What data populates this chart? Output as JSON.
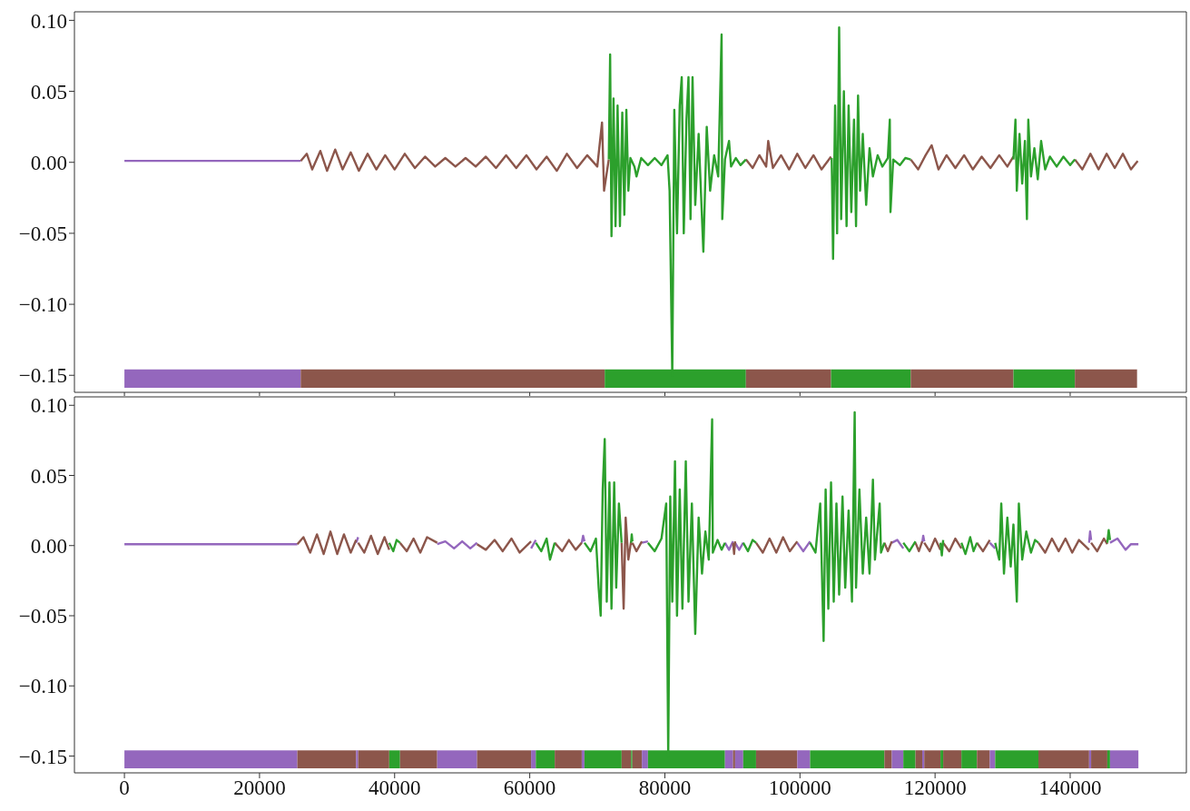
{
  "chart_data": [
    {
      "type": "line",
      "xlim": [
        -7400,
        157200
      ],
      "ylim": [
        -0.162,
        0.106
      ],
      "xticks": [
        0,
        20000,
        40000,
        60000,
        80000,
        100000,
        120000,
        140000
      ],
      "yticks": [
        {
          "value": 0.1,
          "label": "0.10"
        },
        {
          "value": 0.05,
          "label": "0.05"
        },
        {
          "value": 0,
          "label": "0.00"
        },
        {
          "value": -0.05,
          "label": "−0.05"
        },
        {
          "value": -0.1,
          "label": "−0.10"
        },
        {
          "value": -0.15,
          "label": "−0.15"
        }
      ],
      "tick_labels": "y",
      "series": [
        {
          "color": "#9467bd",
          "x": [
            0,
            5000,
            10000,
            15000,
            20000,
            26100
          ],
          "values": [
            0.001,
            0.001,
            0.001,
            0.001,
            0.001,
            0.001
          ]
        },
        {
          "color": "#8c564b",
          "x": [
            26100,
            27000,
            27800,
            29000,
            30000,
            31200,
            32300,
            33500,
            34700,
            36000,
            37300,
            38600,
            40000,
            41500,
            43000,
            44500,
            46000,
            47500,
            49000,
            50500,
            52000,
            53500,
            55000,
            56500,
            58000,
            59500,
            61000,
            62500,
            64000,
            65500,
            67000,
            68500,
            70000,
            70700,
            71000,
            71700,
            80000,
            92000,
            93000,
            94000,
            95000,
            95300,
            96000,
            97200,
            98400,
            99600,
            100800,
            102000,
            103200,
            104600,
            110000,
            116400,
            117500,
            118600,
            119500,
            120500,
            121700,
            123000,
            124300,
            125600,
            126900,
            128200,
            129500,
            130700,
            131600,
            136000,
            140700,
            141800,
            143000,
            144200,
            145400,
            146600,
            147800,
            149000,
            150000
          ],
          "values": [
            0.001,
            0.006,
            -0.005,
            0.008,
            -0.006,
            0.009,
            -0.005,
            0.007,
            -0.006,
            0.006,
            -0.005,
            0.005,
            -0.005,
            0.006,
            -0.004,
            0.004,
            -0.003,
            0.003,
            -0.003,
            0.003,
            -0.003,
            0.004,
            -0.004,
            0.005,
            -0.004,
            0.005,
            -0.005,
            0.004,
            -0.006,
            0.006,
            -0.004,
            0.005,
            -0.003,
            0.028,
            -0.02,
            0.002,
            null,
            0.002,
            -0.004,
            0.005,
            -0.003,
            0.015,
            -0.004,
            0.005,
            -0.005,
            0.006,
            -0.004,
            0.005,
            -0.005,
            0.004,
            null,
            0.002,
            -0.005,
            0.005,
            0.012,
            -0.005,
            0.005,
            -0.004,
            0.005,
            -0.005,
            0.004,
            -0.004,
            0.005,
            -0.003,
            0.004,
            null,
            0.002,
            -0.005,
            0.006,
            -0.005,
            0.006,
            -0.004,
            0.006,
            -0.005,
            0.001
          ]
        },
        {
          "color": "#2ca02c",
          "x": [
            71700,
            71900,
            72100,
            72400,
            72700,
            73000,
            73350,
            73700,
            74000,
            74300,
            74600,
            74900,
            75500,
            75800,
            76500,
            77500,
            78500,
            79500,
            80400,
            80700,
            81100,
            81400,
            81800,
            82200,
            82500,
            82800,
            83200,
            83500,
            83800,
            84100,
            84500,
            85000,
            85700,
            86200,
            86700,
            87300,
            87900,
            88400,
            88500,
            88900,
            89500,
            89800,
            90500,
            91200,
            92000,
            98000,
            104700,
            104900,
            105200,
            105500,
            105800,
            106100,
            106500,
            106900,
            107200,
            107600,
            108000,
            108300,
            108600,
            108900,
            109300,
            109800,
            110300,
            110800,
            111500,
            112200,
            113000,
            113300,
            113400,
            113800,
            114800,
            115600,
            116400,
            125000,
            131600,
            131900,
            132100,
            132500,
            132900,
            133300,
            133600,
            133800,
            134200,
            134700,
            135200,
            135700,
            136300,
            137000,
            138000,
            139000,
            140000,
            140700
          ],
          "values": [
            0.002,
            0.076,
            -0.052,
            0.045,
            -0.045,
            0.04,
            -0.045,
            0.035,
            -0.037,
            0.037,
            -0.02,
            0.003,
            -0.003,
            -0.01,
            0.003,
            -0.002,
            0.003,
            -0.002,
            0.005,
            -0.02,
            -0.15,
            0.037,
            -0.05,
            0.04,
            0.06,
            -0.05,
            0.03,
            0.06,
            -0.04,
            0.06,
            -0.03,
            0.02,
            -0.063,
            0.025,
            -0.02,
            0.005,
            -0.01,
            0.09,
            -0.04,
            0.002,
            0.015,
            -0.003,
            0.003,
            -0.002,
            0.002,
            null,
            0.003,
            -0.068,
            0.04,
            -0.05,
            0.095,
            -0.04,
            0.05,
            -0.045,
            0.04,
            -0.035,
            0.03,
            -0.045,
            0.047,
            -0.02,
            0.02,
            -0.03,
            0.01,
            -0.01,
            0.005,
            -0.003,
            0.003,
            0.03,
            -0.035,
            0.002,
            -0.002,
            0.003,
            0.002,
            null,
            0.002,
            0.03,
            -0.02,
            0.02,
            -0.015,
            0.015,
            -0.04,
            0.03,
            -0.01,
            0.01,
            -0.012,
            0.015,
            -0.005,
            0.004,
            -0.003,
            0.004,
            -0.002,
            0.002
          ]
        }
      ],
      "bands": [
        {
          "axis": "x",
          "from": 0,
          "to": 26100,
          "color": "#9467bd"
        },
        {
          "axis": "x",
          "from": 26100,
          "to": 71100,
          "color": "#8c564b"
        },
        {
          "axis": "x",
          "from": 71100,
          "to": 92000,
          "color": "#2ca02c"
        },
        {
          "axis": "x",
          "from": 92000,
          "to": 104600,
          "color": "#8c564b"
        },
        {
          "axis": "x",
          "from": 104600,
          "to": 116400,
          "color": "#2ca02c"
        },
        {
          "axis": "x",
          "from": 116400,
          "to": 131600,
          "color": "#8c564b"
        },
        {
          "axis": "x",
          "from": 131600,
          "to": 140700,
          "color": "#2ca02c"
        },
        {
          "axis": "x",
          "from": 140700,
          "to": 149900,
          "color": "#8c564b"
        }
      ]
    },
    {
      "type": "line",
      "xlim": [
        -7400,
        157200
      ],
      "ylim": [
        -0.162,
        0.106
      ],
      "xticks": [
        0,
        20000,
        40000,
        60000,
        80000,
        100000,
        120000,
        140000
      ],
      "yticks": [
        {
          "value": 0.1,
          "label": "0.10"
        },
        {
          "value": 0.05,
          "label": "0.05"
        },
        {
          "value": 0,
          "label": "0.00"
        },
        {
          "value": -0.05,
          "label": "−0.05"
        },
        {
          "value": -0.1,
          "label": "−0.10"
        },
        {
          "value": -0.15,
          "label": "−0.15"
        }
      ],
      "series": [
        {
          "color": "#9467bd",
          "x": [
            0,
            12000,
            25600,
            30000,
            34300,
            34600,
            40000,
            46300,
            47500,
            48800,
            50000,
            51200,
            52200,
            56000,
            60200,
            60900,
            64000,
            67700,
            67900,
            68100,
            72000,
            76600,
            77500,
            83000,
            88900,
            89500,
            90100,
            90250,
            90400,
            91000,
            91600,
            95000,
            99600,
            100500,
            101500,
            107000,
            113600,
            114400,
            115300,
            116500,
            118100,
            118250,
            118400,
            123000,
            128100,
            128900,
            135000,
            142800,
            142950,
            143100,
            144500,
            145900,
            147000,
            148200,
            149000,
            150100
          ],
          "values": [
            0.001,
            0.001,
            0.001,
            null,
            0.002,
            0.006,
            null,
            0.001,
            0.003,
            -0.002,
            0.003,
            -0.002,
            0.002,
            null,
            -0.002,
            0.004,
            null,
            0.002,
            0.007,
            0.003,
            null,
            0.002,
            0.003,
            null,
            0.002,
            -0.003,
            0.003,
            null,
            0.002,
            -0.003,
            0.002,
            null,
            0.002,
            -0.004,
            0.003,
            null,
            0.002,
            0.004,
            -0.002,
            null,
            0.002,
            0.007,
            0.003,
            null,
            0.002,
            -0.002,
            null,
            0.002,
            0.01,
            0.004,
            null,
            0.002,
            0.005,
            -0.003,
            0.001,
            0.001
          ]
        },
        {
          "color": "#8c564b",
          "x": [
            25600,
            26500,
            27500,
            28500,
            29500,
            30500,
            31500,
            32500,
            33500,
            34300,
            34450,
            34600,
            35500,
            36500,
            37500,
            38500,
            39200,
            40000,
            40800,
            41800,
            42800,
            43800,
            44800,
            46300,
            49000,
            52200,
            53500,
            54800,
            56000,
            57300,
            58500,
            60200,
            62000,
            63700,
            64800,
            65800,
            66800,
            67700,
            70000,
            73600,
            73900,
            74200,
            74600,
            75000,
            75100,
            75200,
            75800,
            76600,
            83000,
            90100,
            90250,
            90400,
            92000,
            93500,
            94500,
            95500,
            96500,
            97500,
            98500,
            99600,
            106000,
            112500,
            113000,
            113600,
            115000,
            117100,
            117600,
            118100,
            118250,
            118400,
            119200,
            120000,
            120800,
            121000,
            121200,
            122100,
            123000,
            123900,
            125000,
            126200,
            127100,
            128100,
            132000,
            135300,
            136300,
            137300,
            138300,
            139300,
            140300,
            141300,
            142800,
            143000,
            143100,
            144000,
            145000,
            145500
          ],
          "values": [
            0.001,
            0.006,
            -0.005,
            0.008,
            -0.006,
            0.01,
            -0.006,
            0.008,
            -0.005,
            0.004,
            null,
            0.002,
            -0.005,
            0.007,
            -0.006,
            0.006,
            -0.003,
            null,
            0.002,
            -0.004,
            0.005,
            -0.005,
            0.006,
            0.002,
            null,
            0.001,
            -0.003,
            0.004,
            -0.004,
            0.005,
            -0.005,
            0.003,
            null,
            0.002,
            -0.004,
            0.004,
            -0.003,
            0.002,
            null,
            0.002,
            -0.045,
            0.02,
            -0.01,
            0.003,
            null,
            0.002,
            -0.004,
            0.003,
            null,
            0.002,
            -0.006,
            0.003,
            null,
            0.002,
            -0.005,
            0.005,
            -0.005,
            0.006,
            -0.004,
            0.003,
            null,
            0.002,
            -0.004,
            0.003,
            null,
            0.002,
            -0.004,
            0.003,
            null,
            0.002,
            -0.004,
            0.005,
            -0.003,
            null,
            0.002,
            -0.004,
            0.005,
            -0.002,
            null,
            0.002,
            -0.004,
            0.004,
            null,
            0.002,
            -0.005,
            0.005,
            -0.004,
            0.005,
            -0.005,
            0.004,
            -0.003,
            null,
            0.002,
            -0.004,
            0.005,
            0.001
          ]
        },
        {
          "color": "#2ca02c",
          "x": [
            39200,
            39800,
            40300,
            40800,
            50000,
            60900,
            61700,
            62500,
            63000,
            63700,
            66000,
            68100,
            69000,
            69800,
            70200,
            70500,
            70800,
            71100,
            71400,
            71800,
            72100,
            72500,
            72800,
            73200,
            73600,
            74300,
            75000,
            75100,
            75200,
            76000,
            77500,
            78500,
            79500,
            80200,
            80500,
            80800,
            81100,
            81500,
            81800,
            82200,
            82600,
            83100,
            83500,
            84000,
            84500,
            85000,
            85500,
            86000,
            86500,
            87000,
            87100,
            87800,
            88400,
            88900,
            90250,
            91600,
            92300,
            93000,
            93500,
            97000,
            101500,
            102300,
            103000,
            103500,
            103800,
            104200,
            104600,
            105000,
            105400,
            105800,
            106300,
            106700,
            107200,
            107700,
            108100,
            108300,
            108800,
            109300,
            109800,
            110300,
            110800,
            111100,
            111800,
            112000,
            112500,
            114000,
            115300,
            116200,
            117100,
            119000,
            120800,
            121000,
            121200,
            122000,
            123900,
            124500,
            125200,
            125700,
            126200,
            127000,
            128900,
            129500,
            129800,
            130200,
            130700,
            131200,
            131600,
            132100,
            132400,
            132900,
            133500,
            134200,
            134800,
            135300,
            140000,
            145500,
            145700,
            145900
          ],
          "values": [
            0.002,
            -0.004,
            0.004,
            0.002,
            null,
            0.002,
            -0.004,
            0.005,
            -0.01,
            0.002,
            null,
            0.002,
            -0.004,
            0.005,
            -0.03,
            -0.05,
            0.04,
            0.076,
            -0.04,
            0.045,
            -0.045,
            0.045,
            -0.03,
            0.03,
            0.002,
            null,
            0.002,
            0.008,
            0.003,
            null,
            0.002,
            -0.004,
            0.005,
            0.03,
            -0.15,
            0.035,
            -0.04,
            0.06,
            -0.05,
            0.04,
            -0.045,
            0.06,
            -0.04,
            0.03,
            -0.063,
            0.02,
            -0.02,
            0.01,
            -0.01,
            0.09,
            -0.005,
            0.004,
            -0.003,
            0.002,
            null,
            0.002,
            -0.004,
            0.004,
            0.002,
            null,
            0.002,
            -0.005,
            0.03,
            -0.068,
            0.04,
            -0.045,
            0.045,
            -0.04,
            0.03,
            -0.035,
            0.035,
            -0.03,
            0.025,
            -0.04,
            0.095,
            -0.03,
            0.04,
            -0.02,
            0.02,
            -0.02,
            0.047,
            -0.01,
            0.03,
            -0.005,
            0.002,
            null,
            0.002,
            -0.004,
            0.003,
            null,
            0.002,
            -0.007,
            0.004,
            null,
            0.002,
            -0.006,
            0.006,
            -0.004,
            0.002,
            null,
            0.002,
            -0.01,
            0.03,
            -0.02,
            0.02,
            -0.015,
            0.015,
            -0.04,
            0.03,
            -0.01,
            0.01,
            -0.005,
            0.004,
            0.002,
            null,
            0.002,
            0.011,
            0.004
          ]
        }
      ],
      "bands": [
        {
          "axis": "x",
          "from": 0,
          "to": 25600,
          "color": "#9467bd"
        },
        {
          "axis": "x",
          "from": 25600,
          "to": 34300,
          "color": "#8c564b"
        },
        {
          "axis": "x",
          "from": 34300,
          "to": 34600,
          "color": "#9467bd"
        },
        {
          "axis": "x",
          "from": 34600,
          "to": 39200,
          "color": "#8c564b"
        },
        {
          "axis": "x",
          "from": 39200,
          "to": 40800,
          "color": "#2ca02c"
        },
        {
          "axis": "x",
          "from": 40800,
          "to": 46300,
          "color": "#8c564b"
        },
        {
          "axis": "x",
          "from": 46300,
          "to": 52200,
          "color": "#9467bd"
        },
        {
          "axis": "x",
          "from": 52200,
          "to": 60200,
          "color": "#8c564b"
        },
        {
          "axis": "x",
          "from": 60200,
          "to": 60900,
          "color": "#9467bd"
        },
        {
          "axis": "x",
          "from": 60900,
          "to": 63700,
          "color": "#2ca02c"
        },
        {
          "axis": "x",
          "from": 63700,
          "to": 67700,
          "color": "#8c564b"
        },
        {
          "axis": "x",
          "from": 67700,
          "to": 68100,
          "color": "#9467bd"
        },
        {
          "axis": "x",
          "from": 68100,
          "to": 73600,
          "color": "#2ca02c"
        },
        {
          "axis": "x",
          "from": 73600,
          "to": 75000,
          "color": "#8c564b"
        },
        {
          "axis": "x",
          "from": 75000,
          "to": 75200,
          "color": "#2ca02c"
        },
        {
          "axis": "x",
          "from": 75200,
          "to": 76600,
          "color": "#8c564b"
        },
        {
          "axis": "x",
          "from": 76600,
          "to": 77500,
          "color": "#9467bd"
        },
        {
          "axis": "x",
          "from": 77500,
          "to": 88900,
          "color": "#2ca02c"
        },
        {
          "axis": "x",
          "from": 88900,
          "to": 90100,
          "color": "#9467bd"
        },
        {
          "axis": "x",
          "from": 90100,
          "to": 90400,
          "color": "#8c564b"
        },
        {
          "axis": "x",
          "from": 90400,
          "to": 91600,
          "color": "#9467bd"
        },
        {
          "axis": "x",
          "from": 91600,
          "to": 93500,
          "color": "#2ca02c"
        },
        {
          "axis": "x",
          "from": 93500,
          "to": 99600,
          "color": "#8c564b"
        },
        {
          "axis": "x",
          "from": 99600,
          "to": 101500,
          "color": "#9467bd"
        },
        {
          "axis": "x",
          "from": 101500,
          "to": 112500,
          "color": "#2ca02c"
        },
        {
          "axis": "x",
          "from": 112500,
          "to": 113600,
          "color": "#8c564b"
        },
        {
          "axis": "x",
          "from": 113600,
          "to": 115300,
          "color": "#9467bd"
        },
        {
          "axis": "x",
          "from": 115300,
          "to": 117100,
          "color": "#2ca02c"
        },
        {
          "axis": "x",
          "from": 117100,
          "to": 118100,
          "color": "#8c564b"
        },
        {
          "axis": "x",
          "from": 118100,
          "to": 118400,
          "color": "#9467bd"
        },
        {
          "axis": "x",
          "from": 118400,
          "to": 120800,
          "color": "#8c564b"
        },
        {
          "axis": "x",
          "from": 120800,
          "to": 121200,
          "color": "#2ca02c"
        },
        {
          "axis": "x",
          "from": 121200,
          "to": 123900,
          "color": "#8c564b"
        },
        {
          "axis": "x",
          "from": 123900,
          "to": 126200,
          "color": "#2ca02c"
        },
        {
          "axis": "x",
          "from": 126200,
          "to": 128100,
          "color": "#8c564b"
        },
        {
          "axis": "x",
          "from": 128100,
          "to": 128900,
          "color": "#9467bd"
        },
        {
          "axis": "x",
          "from": 128900,
          "to": 135300,
          "color": "#2ca02c"
        },
        {
          "axis": "x",
          "from": 135300,
          "to": 142800,
          "color": "#8c564b"
        },
        {
          "axis": "x",
          "from": 142800,
          "to": 143100,
          "color": "#9467bd"
        },
        {
          "axis": "x",
          "from": 143100,
          "to": 145500,
          "color": "#8c564b"
        },
        {
          "axis": "x",
          "from": 145500,
          "to": 145900,
          "color": "#2ca02c"
        },
        {
          "axis": "x",
          "from": 145900,
          "to": 150100,
          "color": "#9467bd"
        }
      ]
    }
  ]
}
